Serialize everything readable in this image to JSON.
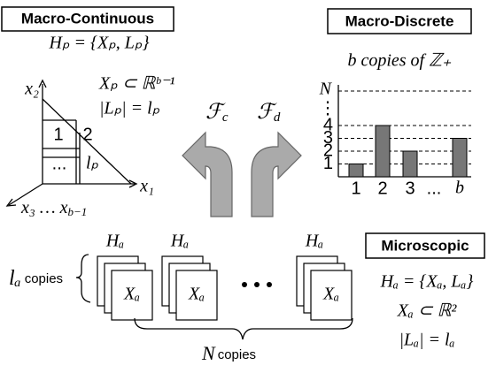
{
  "macro_continuous": {
    "title": "Macro-Continuous",
    "set": "Hₚ = {Xₚ, Lₚ}",
    "subset": "Xₚ ⊂ ℝᵇ⁻¹",
    "size": "|Lₚ| = lₚ",
    "axis_x2": "x₂",
    "axis_x1": "x₁",
    "axis_x3": {
      "text": "x₃ … x",
      "sub": "b−1"
    },
    "cells": [
      "1",
      "2",
      "...",
      "lₚ"
    ]
  },
  "macro_discrete": {
    "title": "Macro-Discrete",
    "subtitle": "b copies of ℤ₊",
    "yticks": [
      1,
      2,
      3,
      4
    ],
    "ytick_top": "N",
    "y_ellipsis": "⋮",
    "categories": [
      "1",
      "2",
      "3",
      "...",
      "b"
    ],
    "values": [
      1,
      4,
      2,
      null,
      3
    ],
    "color": "#777777"
  },
  "maps": [
    {
      "symbol": "ℱ",
      "sub": "c"
    },
    {
      "symbol": "ℱ",
      "sub": "d"
    }
  ],
  "microscopic": {
    "title": "Microscopic",
    "set": "Hₐ = {Xₐ, Lₐ}",
    "subset": "Xₐ ⊂ ℝ²",
    "size": "|Lₐ| = lₐ",
    "card_top": "Hₐ",
    "card_label": "Xₐ",
    "copies": {
      "count": "lₐ",
      "word": "copies"
    },
    "n_copies": {
      "count": "N",
      "word": "copies"
    }
  }
}
